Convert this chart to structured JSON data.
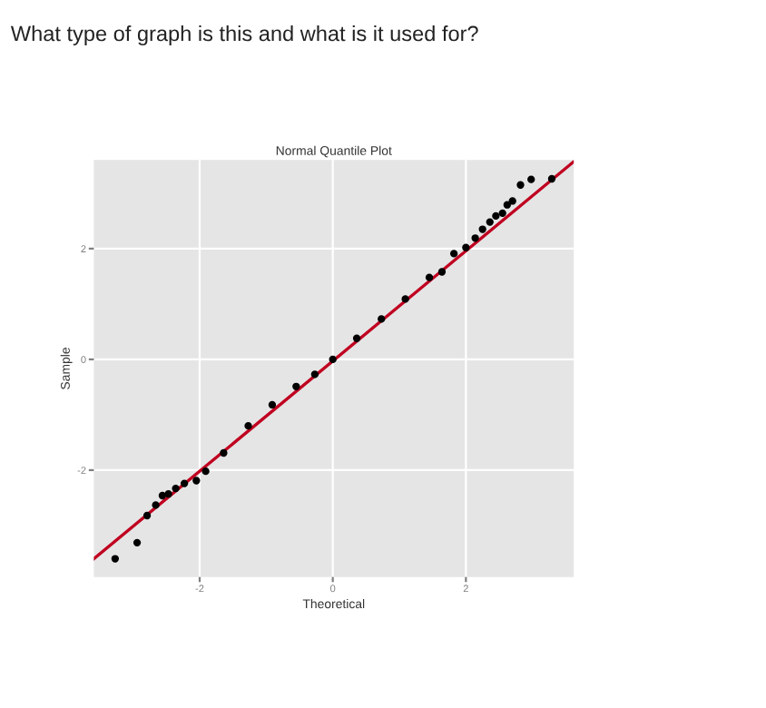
{
  "chart_data": {
    "type": "scatter",
    "title": "Normal Quantile Plot",
    "xlabel": "Theoretical",
    "ylabel": "Sample",
    "annotations": [
      "What type of graph is this and what is it used for?"
    ],
    "xlim": [
      -3.59,
      3.62
    ],
    "ylim": [
      -3.93,
      3.6
    ],
    "xticks": [
      -2,
      0,
      2
    ],
    "yticks": [
      -2,
      0,
      2
    ],
    "grid": true,
    "series": [
      {
        "marker": "circle",
        "color": "#000000",
        "x": [
          -3.27,
          -2.94,
          -2.79,
          -2.66,
          -2.56,
          -2.47,
          -2.36,
          -2.23,
          -2.05,
          -1.91,
          -1.64,
          -1.27,
          -0.91,
          -0.55,
          -0.27,
          0,
          0.36,
          0.73,
          1.09,
          1.45,
          1.64,
          1.82,
          2.0,
          2.14,
          2.25,
          2.36,
          2.45,
          2.55,
          2.62,
          2.7,
          2.82,
          2.98,
          3.29
        ],
        "values": [
          -3.6,
          -3.31,
          -2.82,
          -2.63,
          -2.46,
          -2.43,
          -2.33,
          -2.24,
          -2.19,
          -2.02,
          -1.69,
          -1.2,
          -0.82,
          -0.49,
          -0.27,
          0,
          0.38,
          0.73,
          1.09,
          1.48,
          1.58,
          1.91,
          2.02,
          2.19,
          2.35,
          2.48,
          2.59,
          2.64,
          2.79,
          2.86,
          3.15,
          3.25,
          3.26
        ]
      },
      {
        "type": "line",
        "marker": "none",
        "color": "#c00020",
        "x": [
          -3.59,
          3.62
        ],
        "values": [
          -3.6,
          3.57
        ]
      }
    ]
  }
}
